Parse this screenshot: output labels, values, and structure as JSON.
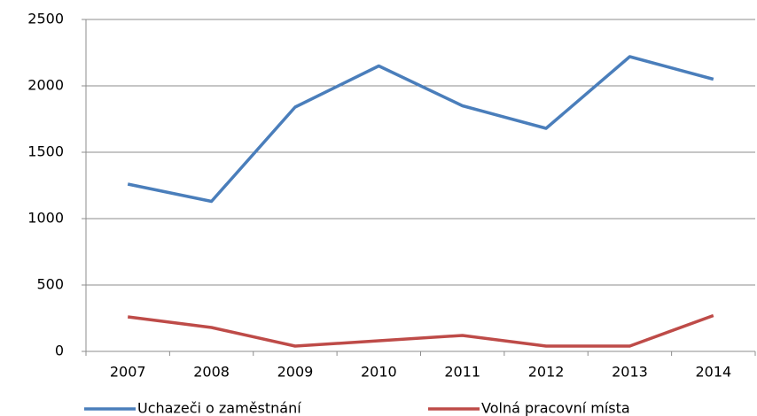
{
  "chart_data": {
    "type": "line",
    "categories": [
      "2007",
      "2008",
      "2009",
      "2010",
      "2011",
      "2012",
      "2013",
      "2014"
    ],
    "series": [
      {
        "name": "Uchazeči o zaměstnání",
        "color": "#4a7ebb",
        "values": [
          1260,
          1130,
          1840,
          2150,
          1850,
          1680,
          2220,
          2050
        ]
      },
      {
        "name": "Volná pracovní místa",
        "color": "#be4b48",
        "values": [
          260,
          180,
          40,
          80,
          120,
          40,
          40,
          270
        ]
      }
    ],
    "ylim": [
      0,
      2500
    ],
    "yticks": [
      0,
      500,
      1000,
      1500,
      2000,
      2500
    ],
    "grid": true,
    "legend": "bottom"
  }
}
